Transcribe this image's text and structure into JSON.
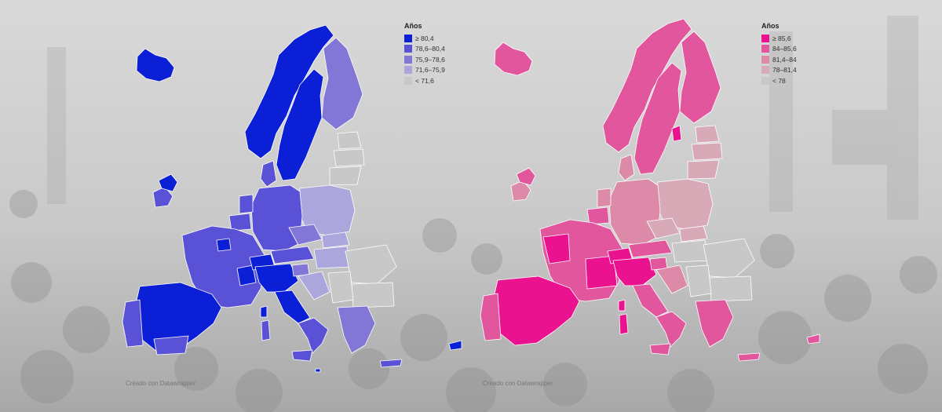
{
  "maps": {
    "left": {
      "legend_title": "Años",
      "legend": [
        {
          "label": "≥ 80,4",
          "color": "#0a1fd6"
        },
        {
          "label": "78,6–80,4",
          "color": "#5a52d6"
        },
        {
          "label": "75,9–78,6",
          "color": "#8277d6"
        },
        {
          "label": "71,6–75,9",
          "color": "#aba6dc"
        },
        {
          "label": "< 71,6",
          "color": "#c8c8c8"
        }
      ],
      "credit": "Creado con Datawrapper"
    },
    "right": {
      "legend_title": "Años",
      "legend": [
        {
          "label": "≥ 85,6",
          "color": "#ea128f"
        },
        {
          "label": "84–85,6",
          "color": "#e1569d"
        },
        {
          "label": "81,4–84",
          "color": "#dd8aa9"
        },
        {
          "label": "78–81,4",
          "color": "#d8aab8"
        },
        {
          "label": "< 78",
          "color": "#c8c8c8"
        }
      ],
      "credit": "Creado con Datawrapper"
    }
  }
}
